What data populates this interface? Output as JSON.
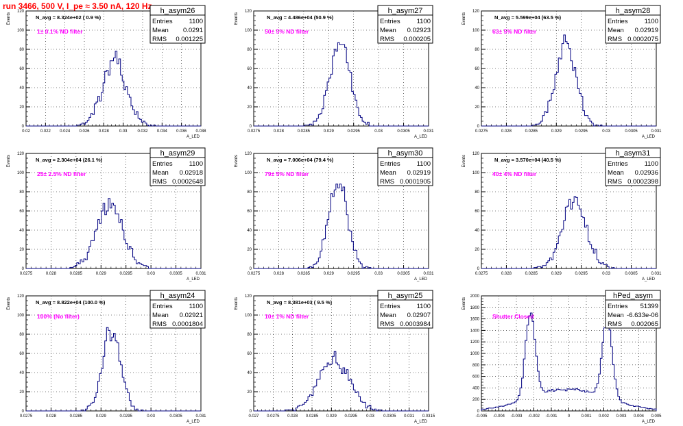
{
  "page_title": "run 3466,   500 V, I_pe ≈ 3.50 nA, 120 Hz",
  "colors": {
    "title": "#ff0000",
    "annotation": "#ff00ff",
    "histogram": "#000080",
    "grid": "#000000"
  },
  "stat_labels": {
    "entries": "Entries",
    "mean": "Mean",
    "rms": "RMS"
  },
  "y_axis_label": "Events",
  "x_axis_label": "A_LED",
  "chart_data": [
    {
      "type": "histogram",
      "name": "h_asym26",
      "header": "N_avg = 8.324e+02 ( 0.9 %)",
      "annotation": "1± 0.1% ND filter",
      "stats": {
        "entries": "1100",
        "mean": "0.0291",
        "rms": "0.001225"
      },
      "xlim": [
        0.02,
        0.038
      ],
      "ylim": [
        0,
        120
      ],
      "xticks": [
        "0.02",
        "0.022",
        "0.024",
        "0.026",
        "0.028",
        "0.03",
        "0.032",
        "0.034",
        "0.036",
        "0.038"
      ],
      "xtick_values": [
        0.02,
        0.022,
        0.024,
        0.026,
        0.028,
        0.03,
        0.032,
        0.034,
        0.036,
        0.038
      ],
      "yticks": [
        0,
        20,
        40,
        60,
        80,
        100,
        120
      ],
      "peaks": [
        {
          "center": 0.0291,
          "sigma": 0.00125,
          "height": 66
        }
      ]
    },
    {
      "type": "histogram",
      "name": "h_asym27",
      "header": "N_avg = 4.486e+04 (50.9 %)",
      "annotation": "50± 5% ND filter",
      "stats": {
        "entries": "1100",
        "mean": "0.02923",
        "rms": "0.000205"
      },
      "xlim": [
        0.0275,
        0.031
      ],
      "ylim": [
        0,
        120
      ],
      "xticks": [
        "0.0275",
        "0.028",
        "0.0285",
        "0.029",
        "0.0295",
        "0.03",
        "0.0305",
        "0.031"
      ],
      "xtick_values": [
        0.0275,
        0.028,
        0.0285,
        0.029,
        0.0295,
        0.03,
        0.0305,
        0.031
      ],
      "yticks": [
        0,
        20,
        40,
        60,
        80,
        100,
        120
      ],
      "peaks": [
        {
          "center": 0.02923,
          "sigma": 0.000205,
          "height": 88
        }
      ]
    },
    {
      "type": "histogram",
      "name": "h_asym28",
      "header": "N_avg = 5.599e+04 (63.5 %)",
      "annotation": "63± 5% ND filter",
      "stats": {
        "entries": "1100",
        "mean": "0.02919",
        "rms": "0.0002075"
      },
      "xlim": [
        0.0275,
        0.031
      ],
      "ylim": [
        0,
        120
      ],
      "xticks": [
        "0.0275",
        "0.028",
        "0.0285",
        "0.029",
        "0.0295",
        "0.03",
        "0.0305",
        "0.031"
      ],
      "xtick_values": [
        0.0275,
        0.028,
        0.0285,
        0.029,
        0.0295,
        0.03,
        0.0305,
        0.031
      ],
      "yticks": [
        0,
        20,
        40,
        60,
        80,
        100,
        120
      ],
      "peaks": [
        {
          "center": 0.02919,
          "sigma": 0.0002075,
          "height": 86
        }
      ]
    },
    {
      "type": "histogram",
      "name": "h_asym29",
      "header": "N_avg = 2.304e+04 (26.1 %)",
      "annotation": "25± 2.5% ND filter",
      "stats": {
        "entries": "1100",
        "mean": "0.02918",
        "rms": "0.0002648"
      },
      "xlim": [
        0.0275,
        0.031
      ],
      "ylim": [
        0,
        120
      ],
      "xticks": [
        "0.0275",
        "0.028",
        "0.0285",
        "0.029",
        "0.0295",
        "0.03",
        "0.0305",
        "0.031"
      ],
      "xtick_values": [
        0.0275,
        0.028,
        0.0285,
        0.029,
        0.0295,
        0.03,
        0.0305,
        0.031
      ],
      "yticks": [
        0,
        20,
        40,
        60,
        80,
        100,
        120
      ],
      "peaks": [
        {
          "center": 0.02918,
          "sigma": 0.000265,
          "height": 66
        }
      ]
    },
    {
      "type": "histogram",
      "name": "h_asym30",
      "header": "N_avg = 7.006e+04 (79.4 %)",
      "annotation": "79± 5% ND filter",
      "stats": {
        "entries": "1100",
        "mean": "0.02919",
        "rms": "0.0001905"
      },
      "xlim": [
        0.0275,
        0.031
      ],
      "ylim": [
        0,
        120
      ],
      "xticks": [
        "0.0275",
        "0.028",
        "0.0285",
        "0.029",
        "0.0295",
        "0.03",
        "0.0305",
        "0.031"
      ],
      "xtick_values": [
        0.0275,
        0.028,
        0.0285,
        0.029,
        0.0295,
        0.03,
        0.0305,
        0.031
      ],
      "yticks": [
        0,
        20,
        40,
        60,
        80,
        100,
        120
      ],
      "peaks": [
        {
          "center": 0.02919,
          "sigma": 0.00019,
          "height": 90
        }
      ]
    },
    {
      "type": "histogram",
      "name": "h_asym31",
      "header": "N_avg = 3.570e+04 (40.5 %)",
      "annotation": "40± 4% ND filter",
      "stats": {
        "entries": "1100",
        "mean": "0.02936",
        "rms": "0.0002398"
      },
      "xlim": [
        0.0275,
        0.031
      ],
      "ylim": [
        0,
        120
      ],
      "xticks": [
        "0.0275",
        "0.028",
        "0.0285",
        "0.029",
        "0.0295",
        "0.03",
        "0.0305",
        "0.031"
      ],
      "xtick_values": [
        0.0275,
        0.028,
        0.0285,
        0.029,
        0.0295,
        0.03,
        0.0305,
        0.031
      ],
      "yticks": [
        0,
        20,
        40,
        60,
        80,
        100,
        120
      ],
      "peaks": [
        {
          "center": 0.02936,
          "sigma": 0.00024,
          "height": 72
        }
      ]
    },
    {
      "type": "histogram",
      "name": "h_asym24",
      "header": "N_avg = 8.822e+04 (100.0 %)",
      "annotation": "100% (No filter)",
      "stats": {
        "entries": "1100",
        "mean": "0.02921",
        "rms": "0.0001804"
      },
      "xlim": [
        0.0275,
        0.031
      ],
      "ylim": [
        0,
        120
      ],
      "xticks": [
        "0.0275",
        "0.028",
        "0.0285",
        "0.029",
        "0.0295",
        "0.03",
        "0.0305",
        "0.031"
      ],
      "xtick_values": [
        0.0275,
        0.028,
        0.0285,
        0.029,
        0.0295,
        0.03,
        0.0305,
        0.031
      ],
      "yticks": [
        0,
        20,
        40,
        60,
        80,
        100,
        120
      ],
      "peaks": [
        {
          "center": 0.02921,
          "sigma": 0.00018,
          "height": 84
        }
      ]
    },
    {
      "type": "histogram",
      "name": "h_asym25",
      "header": "N_avg = 8.381e+03 ( 9.5 %)",
      "annotation": "10± 1% ND filter",
      "stats": {
        "entries": "1100",
        "mean": "0.02907",
        "rms": "0.0003984"
      },
      "xlim": [
        0.027,
        0.0315
      ],
      "ylim": [
        0,
        120
      ],
      "xticks": [
        "0.027",
        "0.0275",
        "0.028",
        "0.0285",
        "0.029",
        "0.0295",
        "0.03",
        "0.0305",
        "0.031",
        "0.0315"
      ],
      "xtick_values": [
        0.027,
        0.0275,
        0.028,
        0.0285,
        0.029,
        0.0295,
        0.03,
        0.0305,
        0.031,
        0.0315
      ],
      "yticks": [
        0,
        20,
        40,
        60,
        80,
        100,
        120
      ],
      "peaks": [
        {
          "center": 0.02907,
          "sigma": 0.0004,
          "height": 54
        }
      ]
    },
    {
      "type": "histogram",
      "name": "hPed_asym",
      "header": "",
      "annotation": "Shutter Closed",
      "stats": {
        "entries": "51399",
        "mean": "-6.633e-06",
        "rms": "0.002065"
      },
      "xlim": [
        -0.005,
        0.005
      ],
      "ylim": [
        0,
        2000
      ],
      "xticks": [
        "-0.005",
        "-0.004",
        "-0.003",
        "-0.002",
        "-0.001",
        "0",
        "0.001",
        "0.002",
        "0.003",
        "0.004",
        "0.005"
      ],
      "xtick_values": [
        -0.005,
        -0.004,
        -0.003,
        -0.002,
        -0.001,
        0,
        0.001,
        0.002,
        0.003,
        0.004,
        0.005
      ],
      "yticks": [
        0,
        200,
        400,
        600,
        800,
        1000,
        1200,
        1400,
        1600,
        1800,
        2000
      ],
      "peaks": [
        {
          "center": -0.0022,
          "sigma": 0.00028,
          "height": 1500
        },
        {
          "center": 0.0022,
          "sigma": 0.00028,
          "height": 1380
        },
        {
          "center": 0.0,
          "sigma": 0.0022,
          "height": 380
        }
      ]
    }
  ]
}
